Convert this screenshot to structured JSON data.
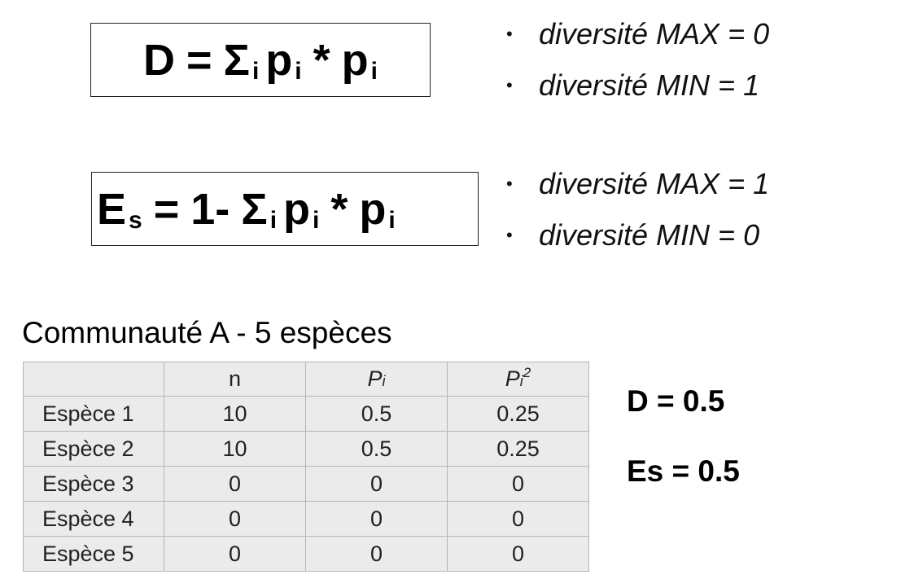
{
  "formula_d": {
    "lhs": "D",
    "eq": "=",
    "sigma": "Σ",
    "sub_i": "i",
    "p": "p",
    "op": "*"
  },
  "formula_es": {
    "lhs": "E",
    "lhs_sub": "s",
    "eq": "=",
    "one_minus": "1-",
    "sigma": "Σ",
    "sub_i": "i",
    "p": "p",
    "op": "*"
  },
  "bullets_d": [
    "diversité MAX = 0",
    "diversité MIN = 1"
  ],
  "bullets_es": [
    "diversité MAX = 1",
    "diversité MIN = 0"
  ],
  "bullet_symbol": "•",
  "community": {
    "title": "Communauté A - 5 espèces",
    "headers": {
      "n": "n",
      "p_base": "P",
      "p_sub": "i",
      "p2_sup": "2"
    },
    "rows": [
      {
        "name": "Espèce 1",
        "n": "10",
        "p": "0.5",
        "p2": "0.25"
      },
      {
        "name": "Espèce 2",
        "n": "10",
        "p": "0.5",
        "p2": "0.25"
      },
      {
        "name": "Espèce 3",
        "n": "0",
        "p": "0",
        "p2": "0"
      },
      {
        "name": "Espèce 4",
        "n": "0",
        "p": "0",
        "p2": "0"
      },
      {
        "name": "Espèce 5",
        "n": "0",
        "p": "0",
        "p2": "0"
      }
    ]
  },
  "results": {
    "d": "D = 0.5",
    "es": "Es = 0.5"
  }
}
